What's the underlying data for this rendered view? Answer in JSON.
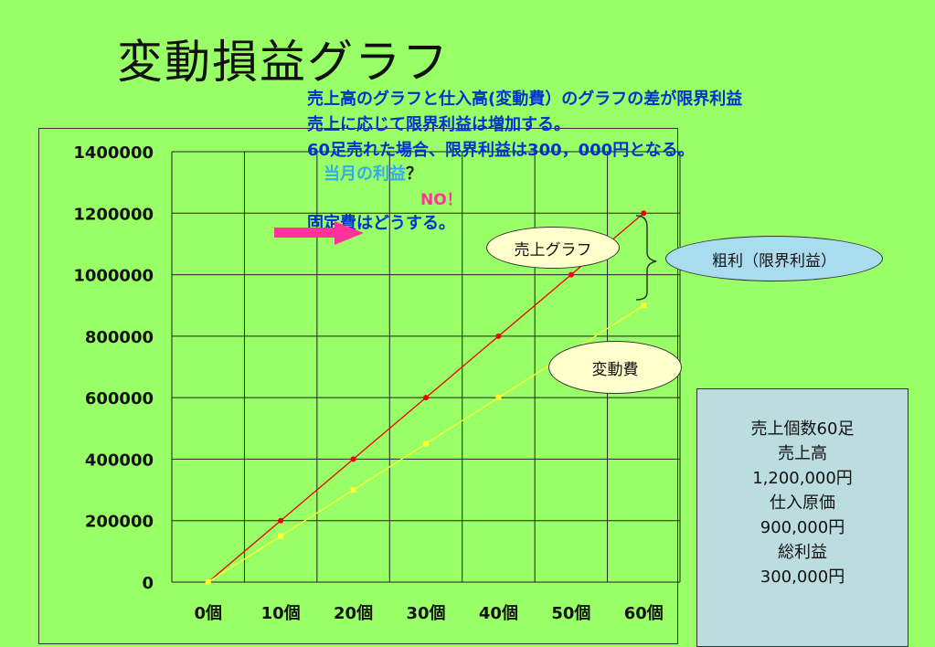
{
  "slide": {
    "title": "変動損益グラフ",
    "notes": [
      "売上高のグラフと仕入高(変動費）のグラフの差が限界利益",
      "売上に応じて限界利益は増加する。",
      "60足売れた場合、限界利益は300，000円となる。"
    ],
    "question": "当月の利益",
    "question_mark": "？",
    "answer": "NO！",
    "fixed_cost_note": "固定費はどうする。"
  },
  "callouts": {
    "sales_label": "売上グラフ",
    "variable_label": "変動費",
    "margin_label": "粗利（限界利益）"
  },
  "summary": {
    "lines": [
      "売上個数60足",
      "売上高",
      "1,200,000円",
      "仕入原価",
      "900,000円",
      "総利益",
      "300,000円"
    ]
  },
  "colors": {
    "background": "#99ff66",
    "sales_line": "#ee0000",
    "variable_line": "#ffff33",
    "arrow": "#ff3399"
  },
  "chart_data": {
    "type": "line",
    "categories": [
      "0個",
      "10個",
      "20個",
      "30個",
      "40個",
      "50個",
      "60個"
    ],
    "series": [
      {
        "name": "売上グラフ",
        "values": [
          0,
          200000,
          400000,
          600000,
          800000,
          1000000,
          1200000
        ]
      },
      {
        "name": "変動費",
        "values": [
          0,
          150000,
          300000,
          450000,
          600000,
          750000,
          900000
        ]
      }
    ],
    "yticks": [
      "0",
      "200000",
      "400000",
      "600000",
      "800000",
      "1000000",
      "1200000",
      "1400000"
    ],
    "ylim": [
      0,
      1400000
    ],
    "grid": true
  }
}
